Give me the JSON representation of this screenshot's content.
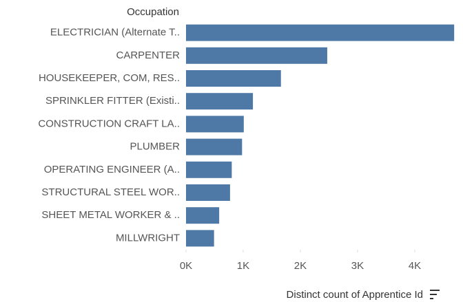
{
  "chart_data": {
    "type": "bar",
    "orientation": "horizontal",
    "y_label": "Occupation",
    "x_label": "Distinct count of Apprentice Id",
    "categories": [
      "ELECTRICIAN (Alternate T..",
      "CARPENTER",
      "HOUSEKEEPER, COM, RES..",
      "SPRINKLER FITTER (Existi..",
      "CONSTRUCTION CRAFT LA..",
      "PLUMBER",
      "OPERATING ENGINEER  (A..",
      "STRUCTURAL STEEL WOR..",
      "SHEET METAL WORKER & ..",
      "MILLWRIGHT"
    ],
    "values": [
      4690,
      2470,
      1660,
      1170,
      1010,
      980,
      800,
      770,
      580,
      490
    ],
    "color": "#4e79a7",
    "xlim": [
      0,
      4700
    ],
    "xticks": [
      {
        "value": 0,
        "label": "0K"
      },
      {
        "value": 1000,
        "label": "1K"
      },
      {
        "value": 2000,
        "label": "2K"
      },
      {
        "value": 3000,
        "label": "3K"
      },
      {
        "value": 4000,
        "label": "4K"
      }
    ],
    "grid": false
  }
}
